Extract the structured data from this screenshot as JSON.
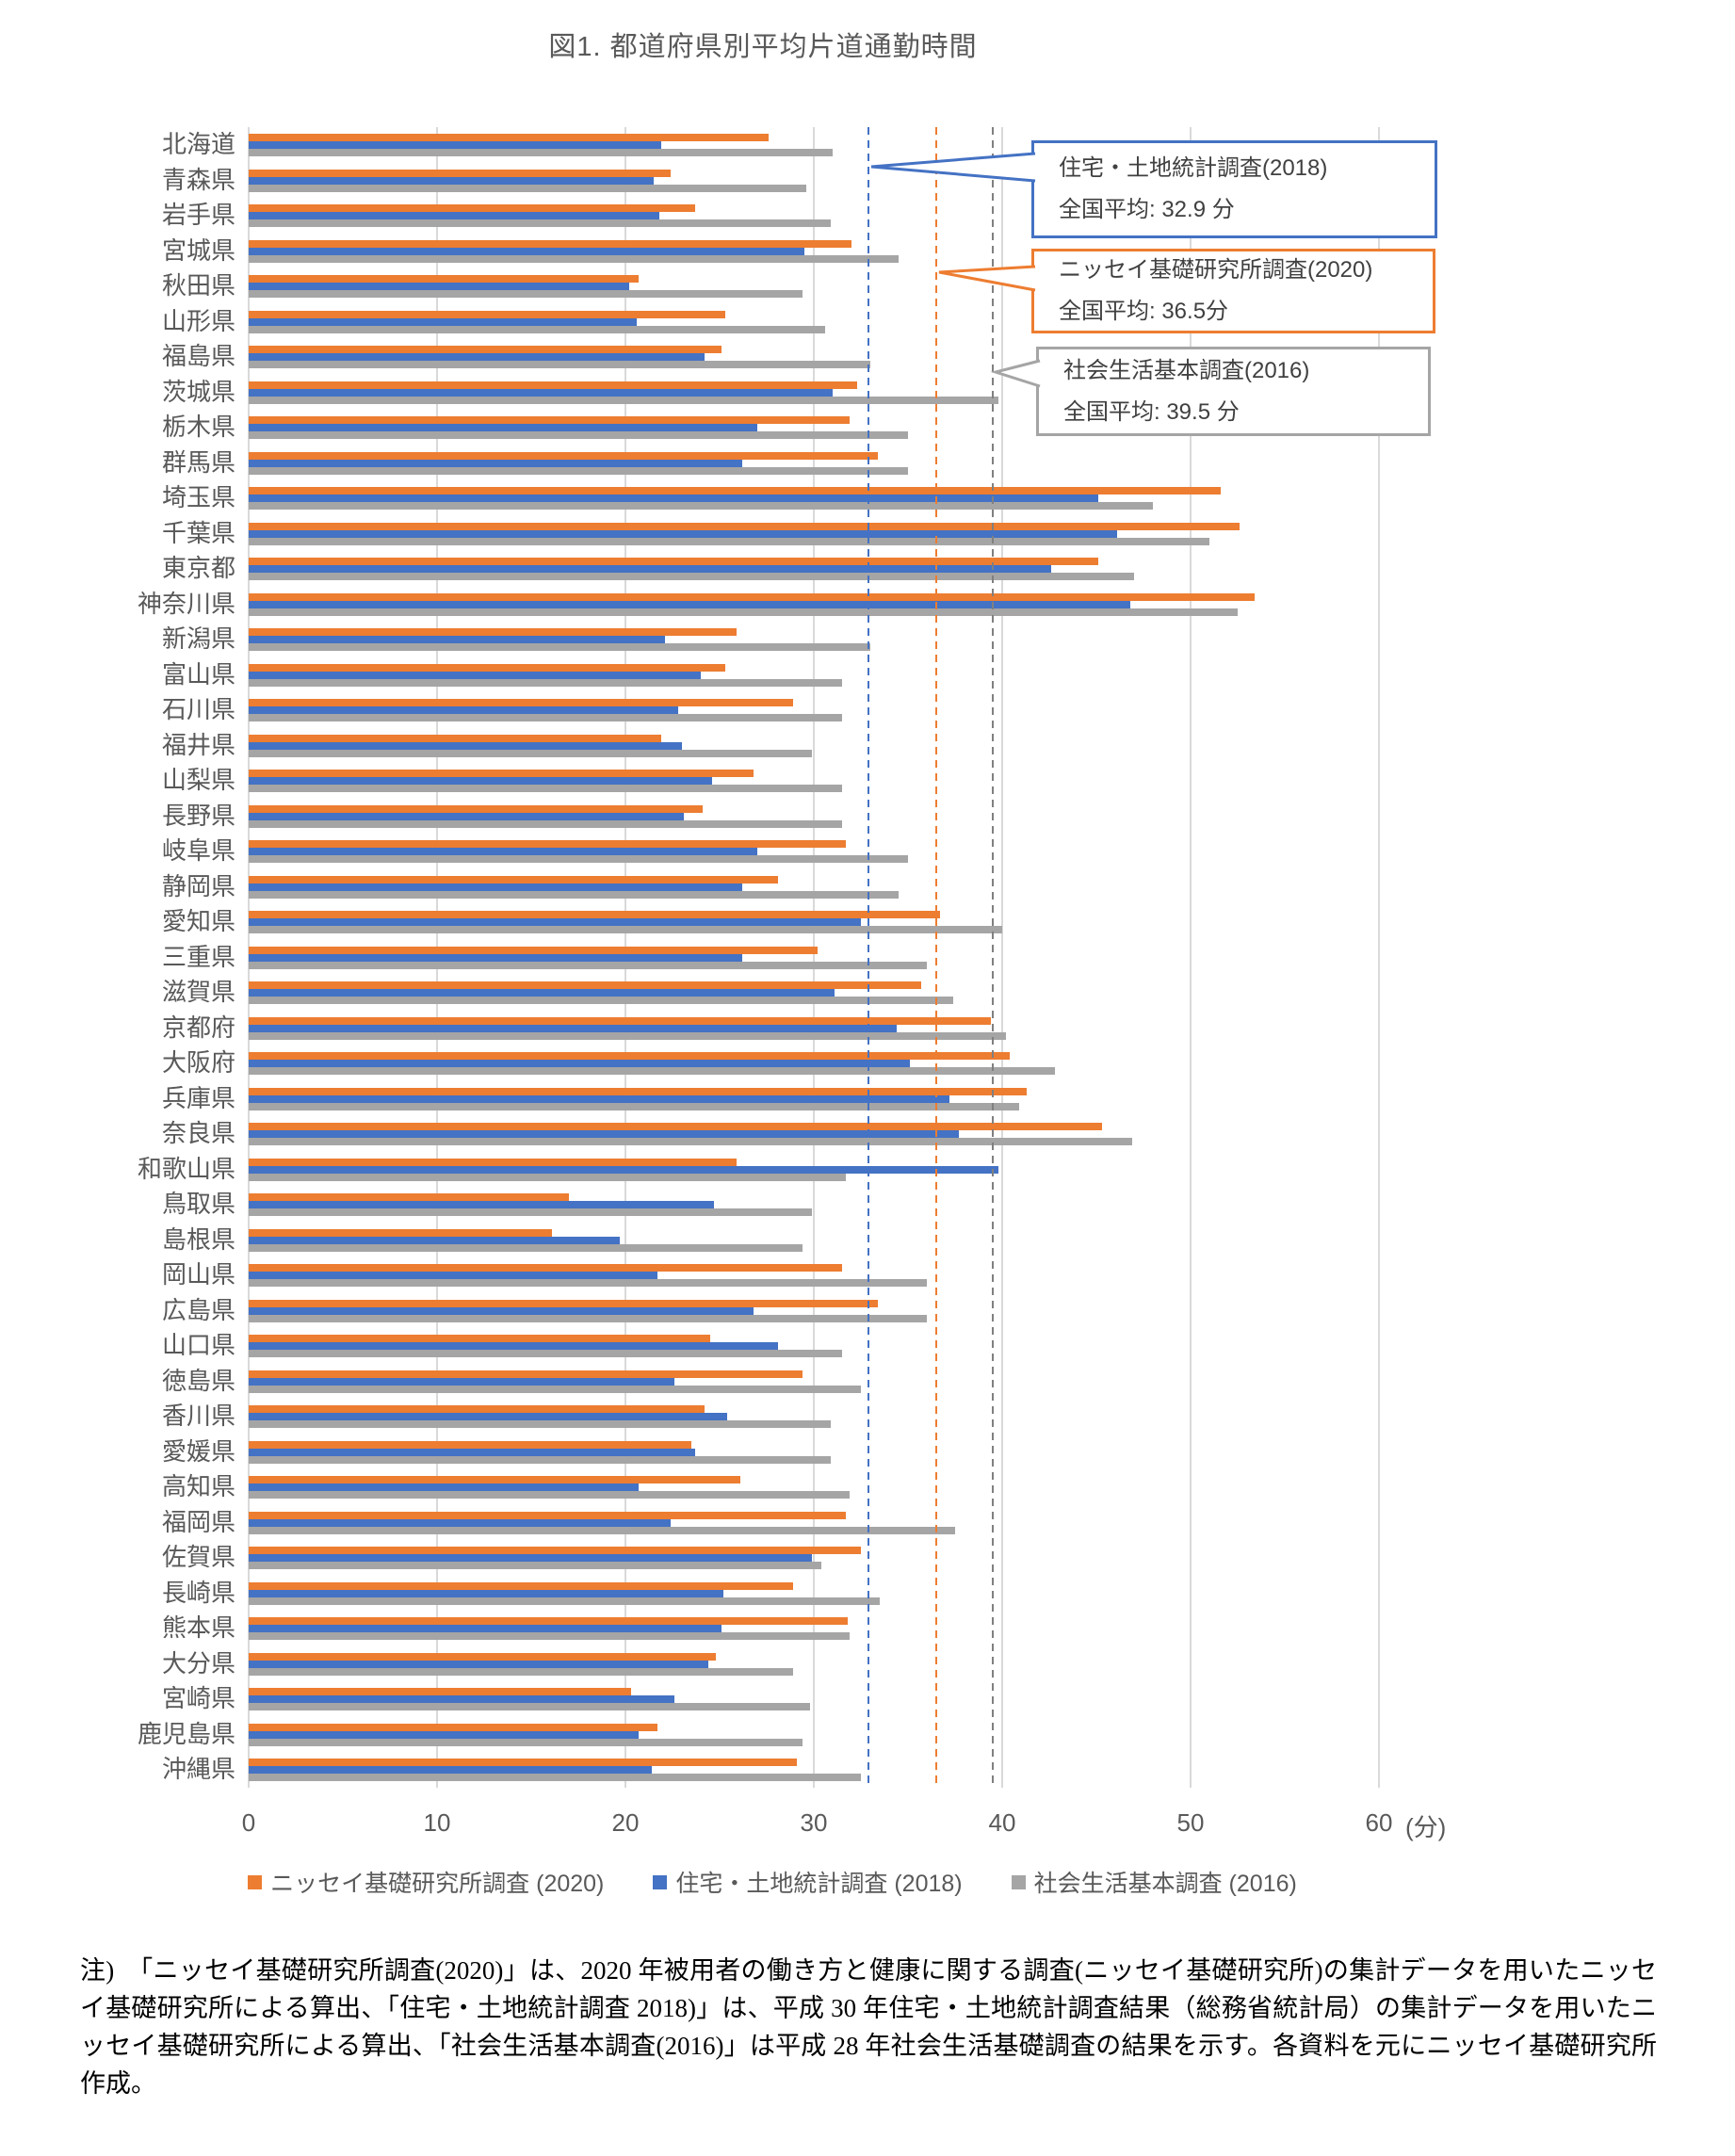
{
  "title": "図1. 都道府県別平均片道通勤時間",
  "chart_data": {
    "type": "bar",
    "orientation": "horizontal",
    "title": "図1. 都道府県別平均片道通勤時間",
    "xlabel": "(分)",
    "unit_label": "(分)",
    "xlim": [
      0,
      60
    ],
    "x_ticks": [
      0,
      10,
      20,
      30,
      40,
      50,
      60
    ],
    "grid": true,
    "legend_position": "bottom",
    "categories": [
      "北海道",
      "青森県",
      "岩手県",
      "宮城県",
      "秋田県",
      "山形県",
      "福島県",
      "茨城県",
      "栃木県",
      "群馬県",
      "埼玉県",
      "千葉県",
      "東京都",
      "神奈川県",
      "新潟県",
      "富山県",
      "石川県",
      "福井県",
      "山梨県",
      "長野県",
      "岐阜県",
      "静岡県",
      "愛知県",
      "三重県",
      "滋賀県",
      "京都府",
      "大阪府",
      "兵庫県",
      "奈良県",
      "和歌山県",
      "鳥取県",
      "島根県",
      "岡山県",
      "広島県",
      "山口県",
      "徳島県",
      "香川県",
      "愛媛県",
      "高知県",
      "福岡県",
      "佐賀県",
      "長崎県",
      "熊本県",
      "大分県",
      "宮崎県",
      "鹿児島県",
      "沖縄県"
    ],
    "series": [
      {
        "name": "ニッセイ基礎研究所調査 (2020)",
        "color": "#ed7d31",
        "values": [
          27.6,
          22.4,
          23.7,
          32.0,
          20.7,
          25.3,
          25.1,
          32.3,
          31.9,
          33.4,
          51.6,
          52.6,
          45.1,
          53.4,
          25.9,
          25.3,
          28.9,
          21.9,
          26.8,
          24.1,
          31.7,
          28.1,
          36.7,
          30.2,
          35.7,
          39.4,
          40.4,
          41.3,
          45.3,
          25.9,
          17.0,
          16.1,
          31.5,
          33.4,
          24.5,
          29.4,
          24.2,
          23.5,
          26.1,
          31.7,
          32.5,
          28.9,
          31.8,
          24.8,
          20.3,
          21.7,
          29.1
        ]
      },
      {
        "name": "住宅・土地統計調査 (2018)",
        "color": "#4472c4",
        "values": [
          21.9,
          21.5,
          21.8,
          29.5,
          20.2,
          20.6,
          24.2,
          31.0,
          27.0,
          26.2,
          45.1,
          46.1,
          42.6,
          46.8,
          22.1,
          24.0,
          22.8,
          23.0,
          24.6,
          23.1,
          27.0,
          26.2,
          32.5,
          26.2,
          31.1,
          34.4,
          35.1,
          37.2,
          37.7,
          39.8,
          24.7,
          19.7,
          21.7,
          26.8,
          28.1,
          22.6,
          25.4,
          23.7,
          20.7,
          22.4,
          29.9,
          25.2,
          25.1,
          24.4,
          22.6,
          20.7,
          21.4
        ]
      },
      {
        "name": "社会生活基本調査 (2016)",
        "color": "#a5a5a5",
        "values": [
          31.0,
          29.6,
          30.9,
          34.5,
          29.4,
          30.6,
          33.0,
          39.8,
          35.0,
          35.0,
          48.0,
          51.0,
          47.0,
          52.5,
          33.0,
          31.5,
          31.5,
          29.9,
          31.5,
          31.5,
          35.0,
          34.5,
          40.0,
          36.0,
          37.4,
          40.2,
          42.8,
          40.9,
          46.9,
          31.7,
          29.9,
          29.4,
          36.0,
          36.0,
          31.5,
          32.5,
          30.9,
          30.9,
          31.9,
          37.5,
          30.4,
          33.5,
          31.9,
          28.9,
          29.8,
          29.4,
          32.5
        ]
      }
    ],
    "reference_lines": [
      {
        "value": 32.9,
        "color": "#4472c4",
        "label": "住宅・土地統計調査(2018) 全国平均"
      },
      {
        "value": 36.5,
        "color": "#ed7d31",
        "label": "ニッセイ基礎研究所調査(2020) 全国平均"
      },
      {
        "value": 39.5,
        "color": "#808080",
        "label": "社会生活基本調査(2016) 全国平均"
      }
    ]
  },
  "callouts": [
    {
      "line1": "住宅・土地統計調査(2018)",
      "line2": "全国平均: 32.9 分",
      "color": "#4472c4"
    },
    {
      "line1": "ニッセイ基礎研究所調査(2020)",
      "line2": "全国平均: 36.5分",
      "color": "#ed7d31"
    },
    {
      "line1": "社会生活基本調査(2016)",
      "line2": "全国平均: 39.5 分",
      "color": "#a5a5a5"
    }
  ],
  "note": "注)　「ニッセイ基礎研究所調査(2020)」は、2020 年被用者の働き方と健康に関する調査(ニッセイ基礎研究所)の集計データを用いたニッセイ基礎研究所による算出、「住宅・土地統計調査 2018)」は、平成 30 年住宅・土地統計調査結果（総務省統計局）の集計データを用いたニッセイ基礎研究所による算出、「社会生活基本調査(2016)」は平成 28 年社会生活基礎調査の結果を示す。各資料を元にニッセイ基礎研究所作成。"
}
